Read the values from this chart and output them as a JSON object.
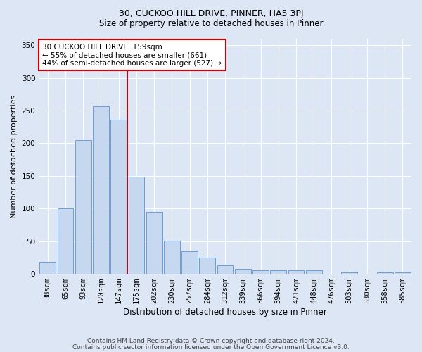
{
  "title1": "30, CUCKOO HILL DRIVE, PINNER, HA5 3PJ",
  "title2": "Size of property relative to detached houses in Pinner",
  "xlabel": "Distribution of detached houses by size in Pinner",
  "ylabel": "Number of detached properties",
  "categories": [
    "38sqm",
    "65sqm",
    "93sqm",
    "120sqm",
    "147sqm",
    "175sqm",
    "202sqm",
    "230sqm",
    "257sqm",
    "284sqm",
    "312sqm",
    "339sqm",
    "366sqm",
    "394sqm",
    "421sqm",
    "448sqm",
    "476sqm",
    "503sqm",
    "530sqm",
    "558sqm",
    "585sqm"
  ],
  "values": [
    18,
    100,
    205,
    257,
    236,
    149,
    95,
    51,
    35,
    25,
    13,
    8,
    6,
    5,
    5,
    5,
    0,
    2,
    0,
    2,
    2
  ],
  "bar_color": "#c5d8f0",
  "bar_edge_color": "#6a9fd8",
  "vline_index": 4,
  "vline_color": "#cc0000",
  "annotation_title": "30 CUCKOO HILL DRIVE: 159sqm",
  "annotation_line1": "← 55% of detached houses are smaller (661)",
  "annotation_line2": "44% of semi-detached houses are larger (527) →",
  "annotation_box_facecolor": "#ffffff",
  "annotation_box_edgecolor": "#cc0000",
  "footer1": "Contains HM Land Registry data © Crown copyright and database right 2024.",
  "footer2": "Contains public sector information licensed under the Open Government Licence v3.0.",
  "bg_color": "#dce6f5",
  "plot_bg_color": "#dce6f5",
  "ylim": [
    0,
    360
  ],
  "yticks": [
    0,
    50,
    100,
    150,
    200,
    250,
    300,
    350
  ],
  "title1_fontsize": 9,
  "title2_fontsize": 8.5,
  "xlabel_fontsize": 8.5,
  "ylabel_fontsize": 8,
  "tick_fontsize": 7.5,
  "footer_fontsize": 6.5,
  "annot_fontsize": 7.5
}
